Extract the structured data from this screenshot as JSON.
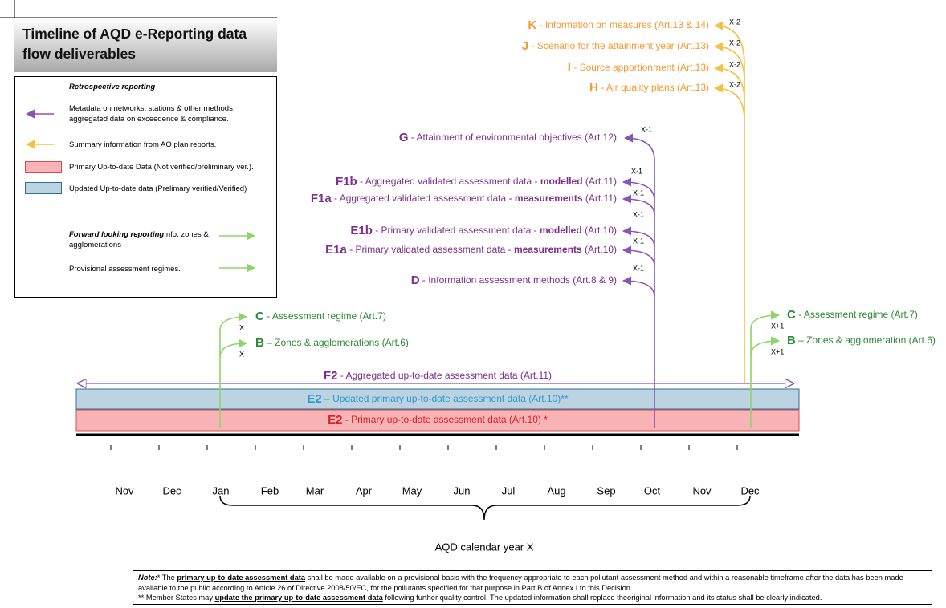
{
  "title": "Timeline of AQD e-Reporting data flow deliverables",
  "legend": {
    "retrospective": "Retrospective reporting",
    "metadata": "Metadata on networks, stations & other methods, aggregated data on exceedence & compliance.",
    "summary": "Summary information from AQ plan reports.",
    "primary": "Primary Up-to-date Data (Not verified/preliminary ver.).",
    "updated": "Updated Up-to-date data (Prelimary verified/Verified)",
    "forward": "Forward looking reporting",
    "forward_text": "Info. zones & agglomerations",
    "provisional": "Provisional assessment regimes."
  },
  "plans": [
    {
      "code": "K",
      "text": " - Information on measures (Art.13 & 14)",
      "year": "X-2"
    },
    {
      "code": "J",
      "text": " - Scenario for the attainment year (Art.13)",
      "year": "X-2"
    },
    {
      "code": "I",
      "text": " - Source apportionment (Art.13)",
      "year": "X-2"
    },
    {
      "code": "H",
      "text": " - Air quality plans (Art.13)",
      "year": "X-2"
    }
  ],
  "assessment": [
    {
      "code": "G",
      "text": " - Attainment of environmental objectives (Art.12)",
      "year": "X-1"
    },
    {
      "code": "F1b",
      "text": " - Aggregated validated assessment data - ",
      "bold": "modelled",
      "tail": " (Art.11)",
      "year": "X-1"
    },
    {
      "code": "F1a",
      "text": " - Aggregated validated assessment data - ",
      "bold": "measurements",
      "tail": " (Art.11)",
      "year": "X-1"
    },
    {
      "code": "E1b",
      "text": " - Primary validated assessment data - ",
      "bold": "modelled",
      "tail": " (Art.10)",
      "year": "X-1"
    },
    {
      "code": "E1a",
      "text": " - Primary validated assessment data - ",
      "bold": "measurements",
      "tail": " (Art.10)",
      "year": "X-1"
    },
    {
      "code": "D",
      "text": " - Information assessment methods (Art.8 & 9)",
      "year": "X-1"
    }
  ],
  "forward_left": [
    {
      "code": "C",
      "text": " - Assessment regime (Art.7)",
      "year": "X"
    },
    {
      "code": "B",
      "text": " – Zones & agglomerations (Art.6)",
      "year": "X"
    }
  ],
  "forward_right": [
    {
      "code": "C",
      "text": " - Assessment regime (Art.7)",
      "year": "X+1"
    },
    {
      "code": "B",
      "text": " – Zones & agglomeration (Art.6)",
      "year": "X+1"
    }
  ],
  "bars": {
    "f2": {
      "code": "F2",
      "text": " - Aggregated up-to-date assessment data  (Art.11)"
    },
    "e2_updated": {
      "code": "E2",
      "text": " – Updated primary up-to-date assessment data (Art.10)**"
    },
    "e2_primary": {
      "code": "E2",
      "text": " - Primary up-to-date assessment data (Art.10) *"
    }
  },
  "months": [
    "Nov",
    "Dec",
    "Jan",
    "Feb",
    "Mar",
    "Apr",
    "May",
    "Jun",
    "Jul",
    "Aug",
    "Sep",
    "Oct",
    "Nov",
    "Dec"
  ],
  "year_label": "AQD calendar year X",
  "note": {
    "label": "Note:",
    "a1": "* The ",
    "b1": "primary up-to-date assessment data",
    "c1": " shall be made available on a provisional basis with the frequency appropriate to each pollutant assessment method and within a reasonable timeframe after the data has been made available to the public according to Article 26 of Directive 2008/50/EC, for the pollutants specified for that purpose in Part B of Annex I to this Decision.",
    "a2": "** Member States may ",
    "b2": "update the primary up-to-date assessment data",
    "c2": " following further quality control. The updated information shall replace theoriginal information and its status shall be clearly indicated."
  }
}
